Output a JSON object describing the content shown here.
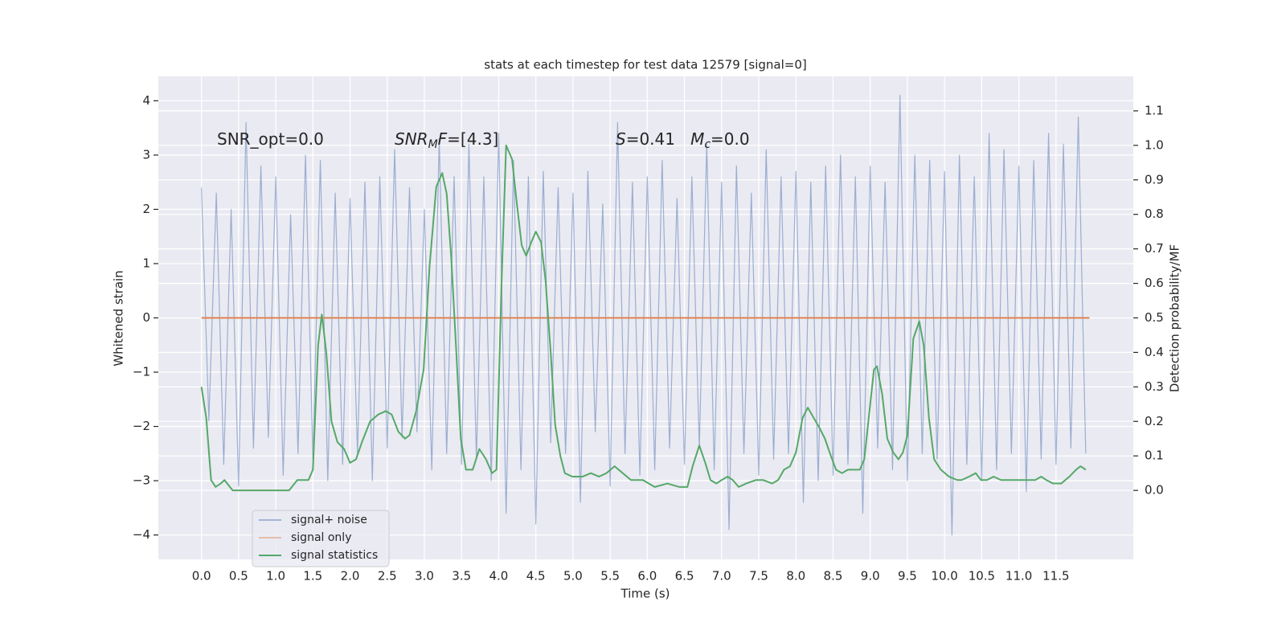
{
  "chart_data": {
    "type": "line",
    "title": "stats at each timestep for test data 12579 [signal=0]",
    "xlabel": "Time (s)",
    "ylabel": "Whitened strain",
    "y2label": "Detection probability/MF",
    "annotations": [
      [
        {
          "text": "SNR_opt=0.0",
          "italic": false,
          "sub": false
        }
      ],
      [
        {
          "text": "SNR",
          "italic": true,
          "sub": false
        },
        {
          "text": "M",
          "italic": true,
          "sub": true
        },
        {
          "text": "F",
          "italic": true,
          "sub": false
        },
        {
          "text": "=[4.3]",
          "italic": false,
          "sub": false
        }
      ],
      [
        {
          "text": "S",
          "italic": true,
          "sub": false
        },
        {
          "text": "=0.41   ",
          "italic": false,
          "sub": false
        },
        {
          "text": "M",
          "italic": true,
          "sub": false
        },
        {
          "text": "c",
          "italic": true,
          "sub": true
        },
        {
          "text": "=0.0",
          "italic": false,
          "sub": false
        }
      ]
    ],
    "xlim": [
      -0.58,
      12.54
    ],
    "xticks": [
      {
        "value": 0,
        "label": "0.0"
      },
      0.5,
      {
        "value": 1,
        "label": "1.0"
      },
      1.5,
      {
        "value": 2,
        "label": "2.0"
      },
      2.5,
      {
        "value": 3,
        "label": "3.0"
      },
      3.5,
      {
        "value": 4,
        "label": "4.0"
      },
      4.5,
      {
        "value": 5,
        "label": "5.0"
      },
      5.5,
      {
        "value": 6,
        "label": "6.0"
      },
      6.5,
      {
        "value": 7,
        "label": "7.0"
      },
      7.5,
      {
        "value": 8,
        "label": "8.0"
      },
      8.5,
      {
        "value": 9,
        "label": "9.0"
      },
      9.5,
      {
        "value": 10,
        "label": "10.0"
      },
      10.5,
      {
        "value": 11,
        "label": "11.0"
      },
      11.5
    ],
    "ylim": [
      -4.45,
      4.45
    ],
    "yticks": [
      -4,
      -3,
      -2,
      -1,
      0,
      1,
      2,
      3,
      4
    ],
    "y2lim": [
      -0.2,
      1.2
    ],
    "y2ticks": [
      {
        "value": 0,
        "label": "0.0"
      },
      0.1,
      0.2,
      0.3,
      0.4,
      0.5,
      0.6,
      0.7,
      0.8,
      0.9,
      {
        "value": 1,
        "label": "1.0"
      },
      1.1
    ],
    "grid": true,
    "legend": "lower left",
    "series": [
      {
        "name": "signal+ noise",
        "color": "#4c72b0",
        "x": [
          0.0,
          0.1,
          0.2,
          0.3,
          0.4,
          0.5,
          0.6,
          0.7,
          0.8,
          0.9,
          1.0,
          1.1,
          1.2,
          1.3,
          1.4,
          1.5,
          1.6,
          1.7,
          1.8,
          1.9,
          2.0,
          2.1,
          2.2,
          2.3,
          2.4,
          2.5,
          2.6,
          2.7,
          2.8,
          2.9,
          3.0,
          3.1,
          3.2,
          3.3,
          3.4,
          3.5,
          3.6,
          3.7,
          3.8,
          3.9,
          4.0,
          4.1,
          4.2,
          4.3,
          4.4,
          4.5,
          4.6,
          4.7,
          4.8,
          4.9,
          5.0,
          5.1,
          5.2,
          5.3,
          5.4,
          5.5,
          5.6,
          5.7,
          5.8,
          5.9,
          6.0,
          6.1,
          6.2,
          6.3,
          6.4,
          6.5,
          6.6,
          6.7,
          6.8,
          6.9,
          7.0,
          7.1,
          7.2,
          7.3,
          7.4,
          7.5,
          7.6,
          7.7,
          7.8,
          7.9,
          8.0,
          8.1,
          8.2,
          8.3,
          8.4,
          8.5,
          8.6,
          8.7,
          8.8,
          8.9,
          9.0,
          9.1,
          9.2,
          9.3,
          9.4,
          9.5,
          9.6,
          9.7,
          9.8,
          9.9,
          10.0,
          10.1,
          10.2,
          10.3,
          10.4,
          10.5,
          10.6,
          10.7,
          10.8,
          10.9,
          11.0,
          11.1,
          11.2,
          11.3,
          11.4,
          11.5,
          11.6,
          11.7,
          11.8,
          11.9
        ],
        "values": [
          2.4,
          -1.9,
          2.3,
          -2.7,
          2.0,
          -3.1,
          3.6,
          -2.4,
          2.8,
          -2.2,
          2.6,
          -2.9,
          1.9,
          -2.5,
          3.0,
          -2.6,
          2.9,
          -3.0,
          2.3,
          -2.7,
          2.2,
          -2.5,
          2.5,
          -3.0,
          2.6,
          -2.4,
          3.1,
          -2.2,
          2.4,
          -2.1,
          2.0,
          -2.8,
          3.3,
          -2.5,
          2.6,
          -2.7,
          3.2,
          -2.6,
          2.6,
          -3.0,
          3.4,
          -3.6,
          2.9,
          -2.8,
          2.6,
          -3.8,
          2.7,
          -2.3,
          2.4,
          -2.5,
          2.3,
          -3.4,
          2.7,
          -2.1,
          2.1,
          -3.1,
          3.6,
          -2.5,
          2.5,
          -2.9,
          2.6,
          -2.8,
          2.9,
          -2.4,
          2.2,
          -2.7,
          2.6,
          -2.4,
          3.2,
          -2.8,
          2.5,
          -3.9,
          2.8,
          -2.5,
          2.3,
          -2.9,
          3.1,
          -2.6,
          2.6,
          -2.5,
          2.7,
          -3.4,
          2.5,
          -3.0,
          2.8,
          -2.9,
          3.0,
          -2.7,
          2.6,
          -3.6,
          2.8,
          -2.4,
          2.5,
          -2.8,
          4.1,
          -3.0,
          3.0,
          -2.5,
          2.9,
          -2.6,
          2.7,
          -4.0,
          3.0,
          -2.7,
          2.6,
          -3.0,
          3.4,
          -2.8,
          3.1,
          -2.5,
          2.8,
          -3.2,
          2.9,
          -2.6,
          3.4,
          -2.7,
          3.2,
          -2.4,
          3.7,
          -2.5
        ]
      },
      {
        "name": "signal only",
        "color": "#dd8452",
        "x": [
          0.0,
          11.95
        ],
        "values": [
          0,
          0
        ]
      },
      {
        "name": "signal statistics",
        "color": "#55a868",
        "axis": "y2",
        "x": [
          0,
          0.065,
          0.13,
          0.19,
          0.26,
          0.31,
          0.42,
          0.53,
          0.75,
          0.96,
          1.18,
          1.29,
          1.36,
          1.44,
          1.5,
          1.57,
          1.62,
          1.68,
          1.75,
          1.83,
          1.92,
          2.0,
          2.08,
          2.16,
          2.27,
          2.38,
          2.48,
          2.56,
          2.65,
          2.74,
          2.8,
          2.89,
          2.99,
          3.07,
          3.16,
          3.24,
          3.3,
          3.36,
          3.43,
          3.49,
          3.56,
          3.65,
          3.74,
          3.83,
          3.91,
          3.97,
          4.04,
          4.1,
          4.18,
          4.24,
          4.31,
          4.37,
          4.44,
          4.5,
          4.57,
          4.63,
          4.7,
          4.76,
          4.83,
          4.89,
          4.99,
          5.13,
          5.24,
          5.35,
          5.45,
          5.56,
          5.67,
          5.78,
          5.94,
          6.1,
          6.27,
          6.43,
          6.54,
          6.61,
          6.7,
          6.78,
          6.85,
          6.93,
          7.0,
          7.08,
          7.15,
          7.23,
          7.33,
          7.46,
          7.56,
          7.68,
          7.76,
          7.84,
          7.92,
          8.0,
          8.09,
          8.16,
          8.24,
          8.32,
          8.39,
          8.47,
          8.54,
          8.62,
          8.7,
          8.78,
          8.86,
          8.92,
          8.97,
          9.05,
          9.09,
          9.16,
          9.23,
          9.31,
          9.38,
          9.44,
          9.5,
          9.58,
          9.66,
          9.72,
          9.79,
          9.86,
          9.95,
          10.06,
          10.17,
          10.23,
          10.33,
          10.42,
          10.49,
          10.57,
          10.66,
          10.76,
          10.83,
          10.94,
          11.08,
          11.22,
          11.3,
          11.37,
          11.46,
          11.57,
          11.68,
          11.77,
          11.83,
          11.9
        ],
        "values": [
          0.3,
          0.21,
          0.03,
          0.01,
          0.02,
          0.03,
          0.0,
          0.0,
          0.0,
          0.0,
          0.0,
          0.03,
          0.03,
          0.03,
          0.06,
          0.42,
          0.51,
          0.4,
          0.2,
          0.14,
          0.12,
          0.08,
          0.09,
          0.14,
          0.2,
          0.22,
          0.23,
          0.22,
          0.17,
          0.15,
          0.16,
          0.23,
          0.35,
          0.65,
          0.88,
          0.92,
          0.86,
          0.68,
          0.4,
          0.15,
          0.06,
          0.06,
          0.12,
          0.09,
          0.05,
          0.06,
          0.61,
          1.0,
          0.96,
          0.84,
          0.71,
          0.68,
          0.72,
          0.75,
          0.72,
          0.61,
          0.4,
          0.19,
          0.1,
          0.05,
          0.04,
          0.04,
          0.05,
          0.04,
          0.05,
          0.07,
          0.05,
          0.03,
          0.03,
          0.01,
          0.02,
          0.01,
          0.01,
          0.07,
          0.13,
          0.08,
          0.03,
          0.02,
          0.03,
          0.04,
          0.03,
          0.01,
          0.02,
          0.03,
          0.03,
          0.02,
          0.03,
          0.06,
          0.07,
          0.11,
          0.21,
          0.24,
          0.21,
          0.18,
          0.15,
          0.1,
          0.06,
          0.05,
          0.06,
          0.06,
          0.06,
          0.09,
          0.19,
          0.35,
          0.36,
          0.28,
          0.15,
          0.11,
          0.09,
          0.11,
          0.16,
          0.44,
          0.49,
          0.42,
          0.21,
          0.09,
          0.06,
          0.04,
          0.03,
          0.03,
          0.04,
          0.05,
          0.03,
          0.03,
          0.04,
          0.03,
          0.03,
          0.03,
          0.03,
          0.03,
          0.04,
          0.03,
          0.02,
          0.02,
          0.04,
          0.06,
          0.07,
          0.06
        ]
      }
    ]
  }
}
